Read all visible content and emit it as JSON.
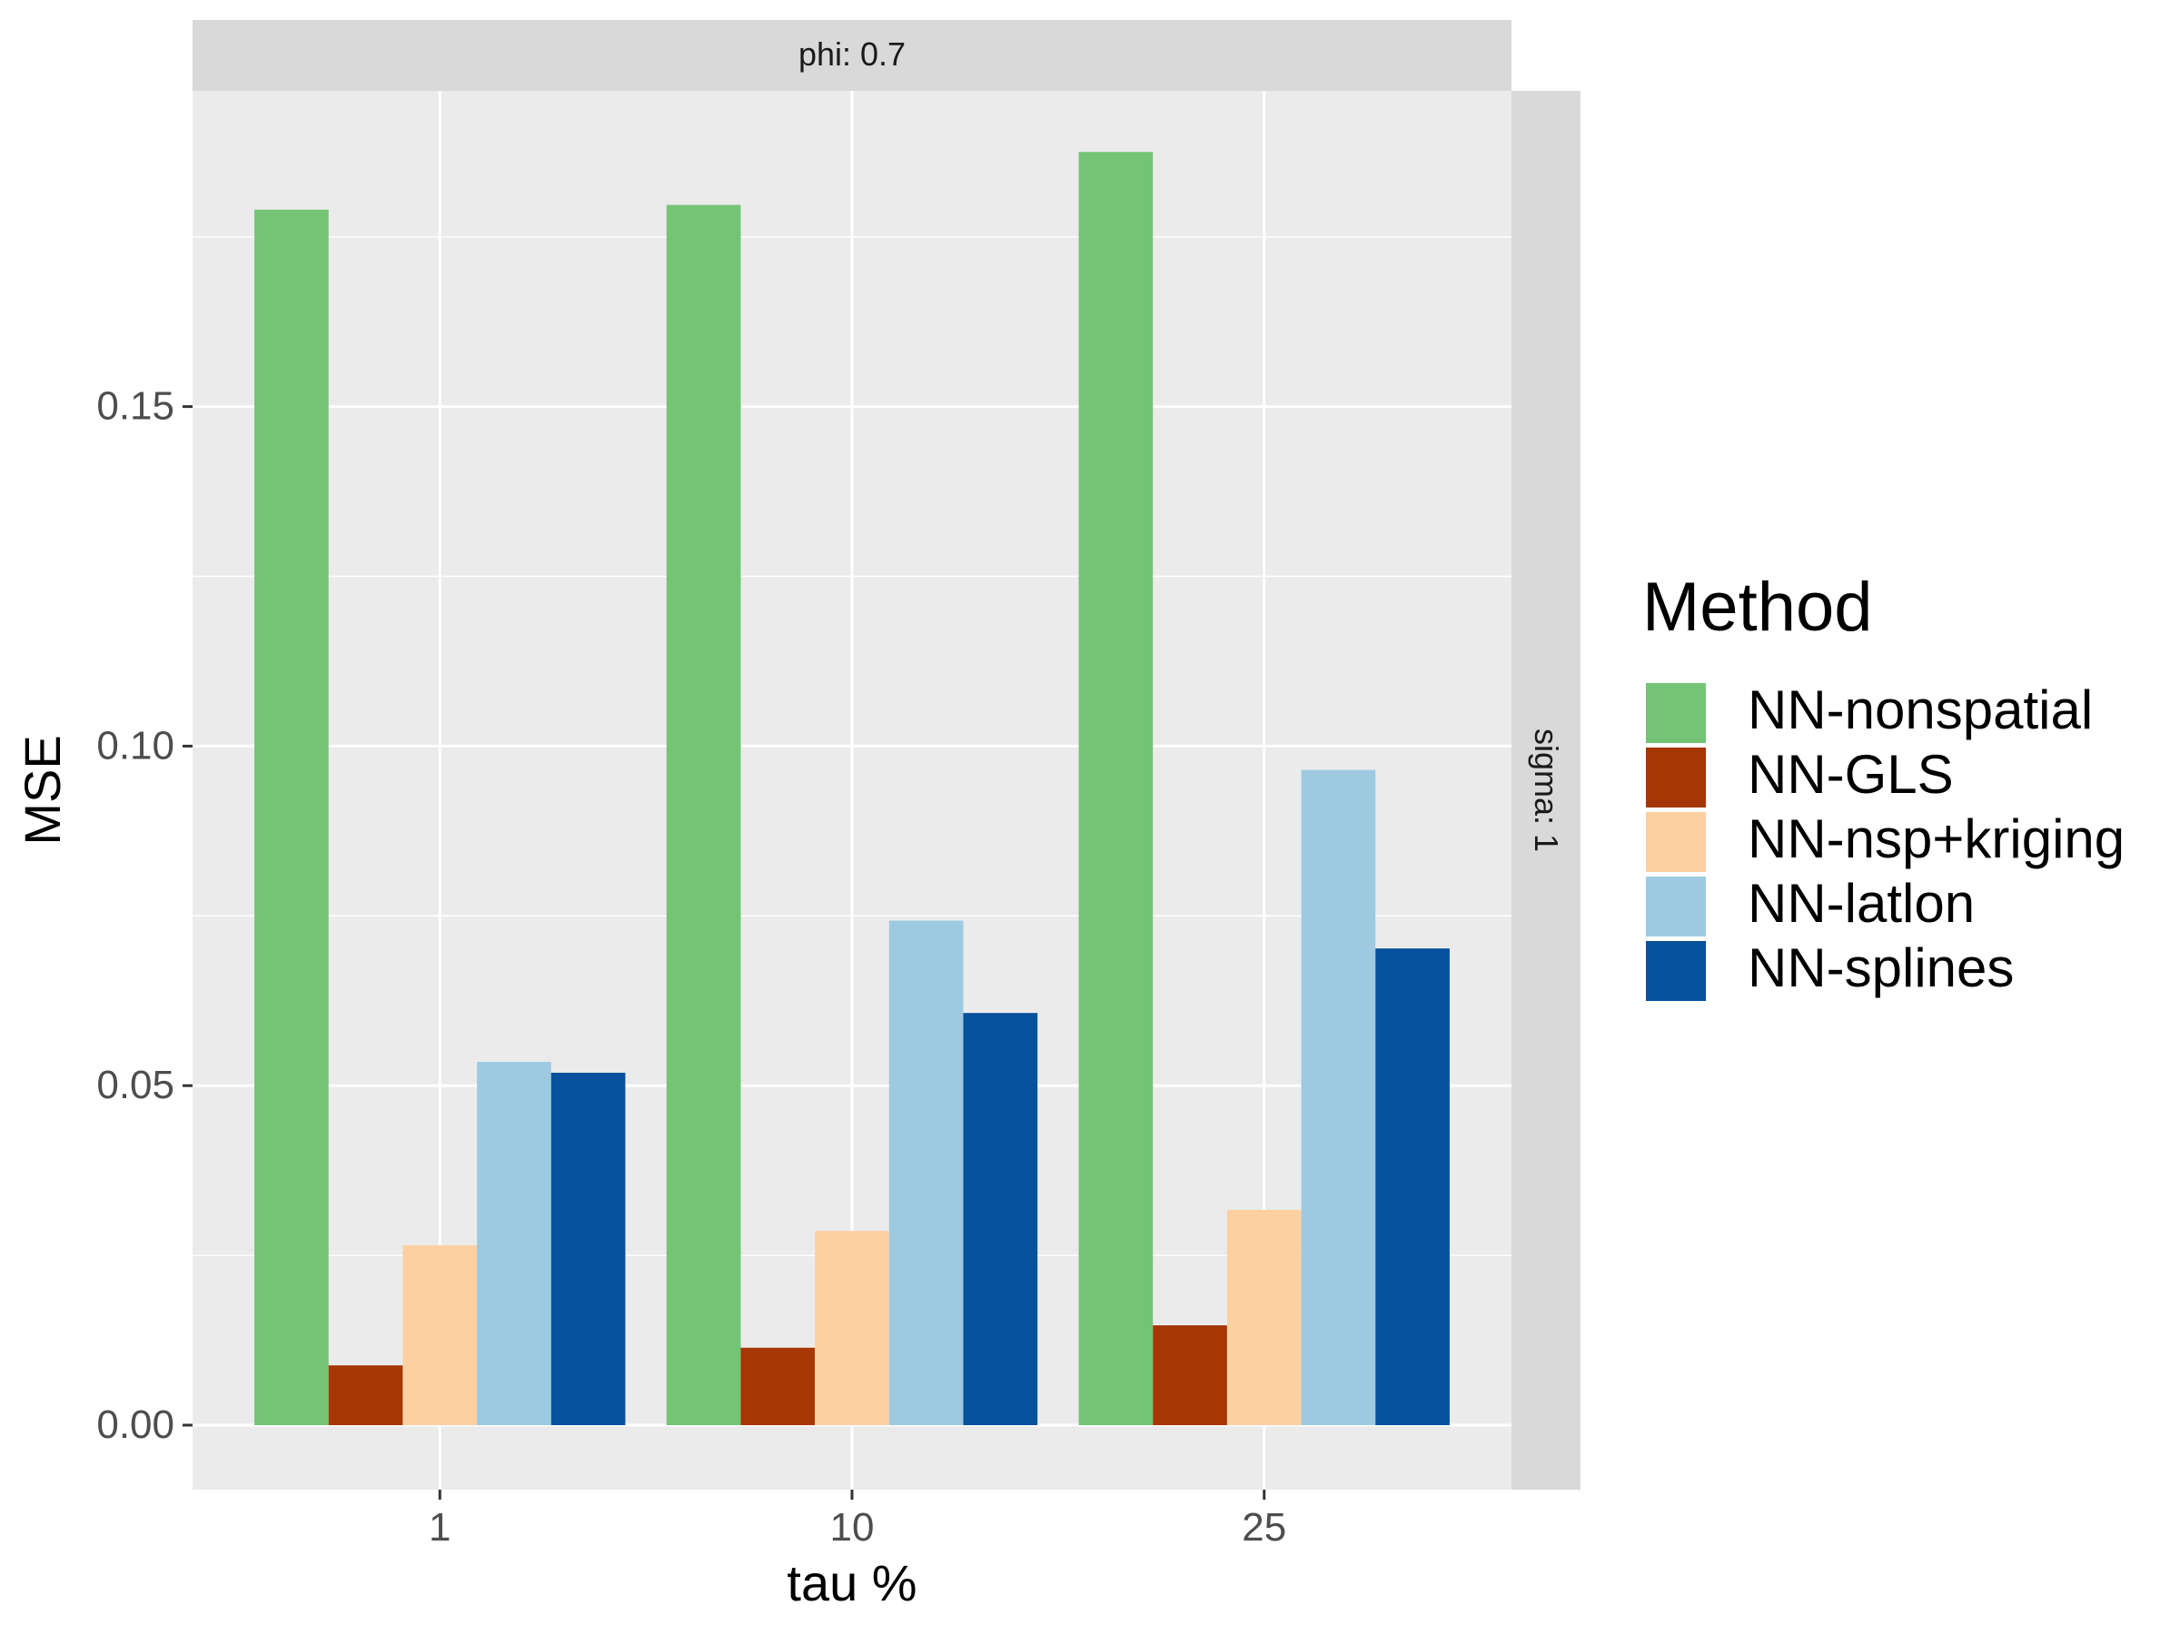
{
  "chart_data": {
    "type": "bar",
    "facet_top_label": "phi: 0.7",
    "facet_right_label": "sigma: 1",
    "xlabel": "tau %",
    "ylabel": "MSE",
    "categories": [
      "1",
      "10",
      "25"
    ],
    "ylim": [
      -0.0095,
      0.1965
    ],
    "yticks": [
      0.0,
      0.05,
      0.1,
      0.15
    ],
    "ytick_labels": [
      "0.00",
      "0.05",
      "0.10",
      "0.15"
    ],
    "grid": true,
    "legend_title": "Method",
    "legend_position": "right",
    "series": [
      {
        "name": "NN-nonspatial",
        "color": "#74c476",
        "values": [
          0.179,
          0.1797,
          0.1875
        ]
      },
      {
        "name": "NN-GLS",
        "color": "#a63603",
        "values": [
          0.0088,
          0.0114,
          0.0147
        ]
      },
      {
        "name": "NN-nsp+kriging",
        "color": "#fdd0a2",
        "values": [
          0.0265,
          0.0286,
          0.0317
        ]
      },
      {
        "name": "NN-latlon",
        "color": "#9ecae1",
        "values": [
          0.0535,
          0.0743,
          0.0965
        ]
      },
      {
        "name": "NN-splines",
        "color": "#08519c",
        "values": [
          0.0519,
          0.0607,
          0.0702
        ]
      }
    ]
  }
}
